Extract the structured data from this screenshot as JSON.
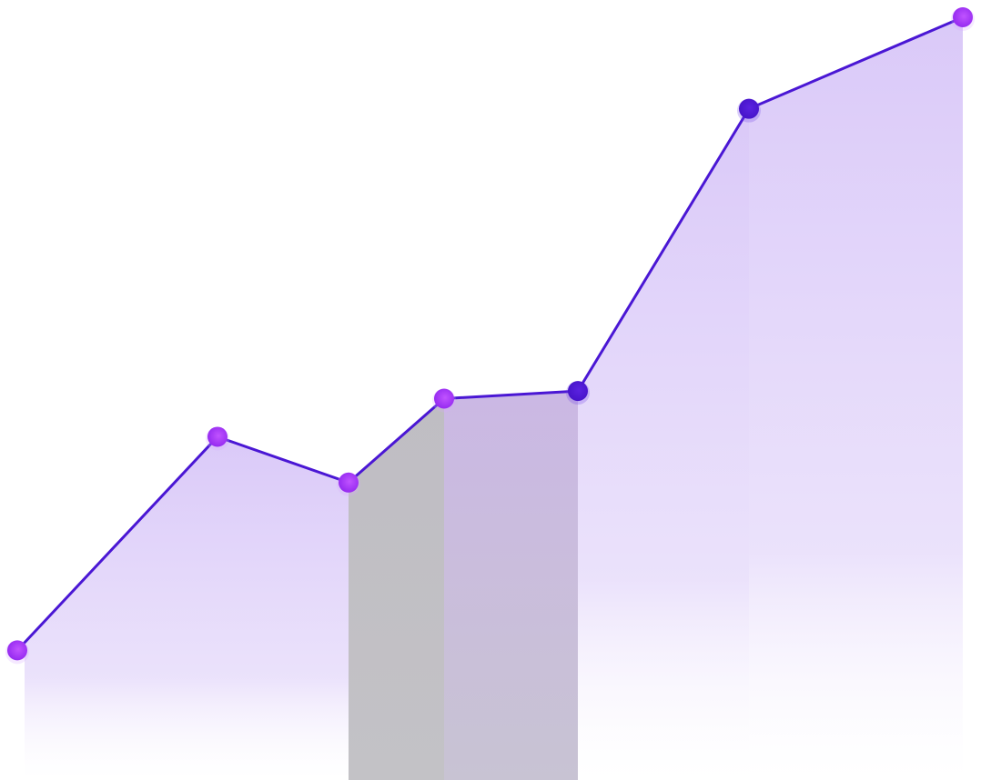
{
  "chart_data": {
    "type": "area",
    "title": "",
    "xlabel": "",
    "ylabel": "",
    "axes_visible": false,
    "grid": false,
    "legend": "none",
    "ylim": [
      0,
      100
    ],
    "series": [
      {
        "x": [
          0,
          1,
          2,
          3,
          4,
          5,
          6
        ],
        "values": [
          17,
          45,
          39,
          50,
          51,
          88,
          100
        ]
      }
    ],
    "segment_shading": [
      "lavender",
      "lavender",
      "gray",
      "mauve",
      "lavender",
      "lavender"
    ],
    "colors": {
      "line": "#4a17d4",
      "marker_light": "#9a2cf4",
      "marker_dark": "#4b16d0",
      "fill_lavender": "#d8c6f8",
      "fill_gray": "#bfbdc3",
      "fill_mauve": "#c6b7df"
    },
    "marker_styles": [
      "light",
      "light",
      "light",
      "light",
      "dark",
      "dark",
      "light"
    ]
  }
}
